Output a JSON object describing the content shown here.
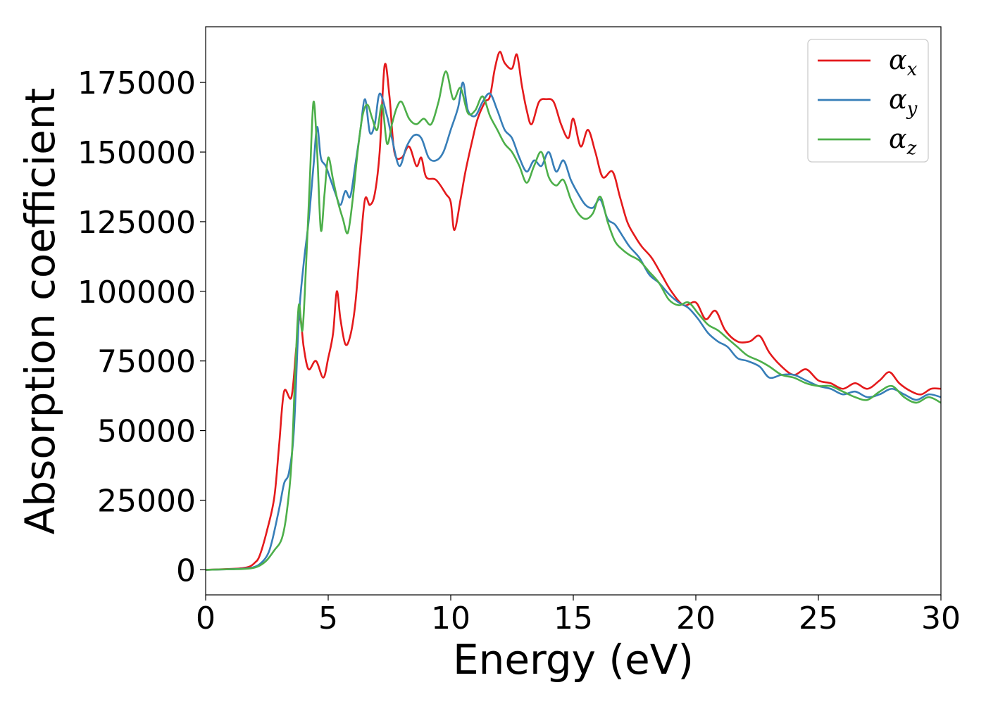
{
  "chart_data": {
    "type": "line",
    "title": "",
    "xlabel": "Energy (eV)",
    "ylabel": "Absorption coefficient",
    "xlim": [
      0,
      30
    ],
    "ylim": [
      -9000,
      195000
    ],
    "xticks": [
      0,
      5,
      10,
      15,
      20,
      25,
      30
    ],
    "xtick_labels": [
      "0",
      "5",
      "10",
      "15",
      "20",
      "25",
      "30"
    ],
    "yticks": [
      0,
      25000,
      50000,
      75000,
      100000,
      125000,
      150000,
      175000
    ],
    "ytick_labels": [
      "0",
      "25000",
      "50000",
      "75000",
      "100000",
      "125000",
      "150000",
      "175000"
    ],
    "grid": false,
    "legend_position": "top-right",
    "series": [
      {
        "name": "α",
        "sub": "x",
        "color": "#e41a1c",
        "points": [
          [
            0,
            0
          ],
          [
            1.0,
            300
          ],
          [
            1.5,
            600
          ],
          [
            1.8,
            1200
          ],
          [
            2.0,
            2500
          ],
          [
            2.2,
            5000
          ],
          [
            2.5,
            14000
          ],
          [
            2.8,
            26000
          ],
          [
            3.0,
            45000
          ],
          [
            3.2,
            64000
          ],
          [
            3.5,
            62000
          ],
          [
            3.7,
            80000
          ],
          [
            3.85,
            91000
          ],
          [
            4.0,
            80000
          ],
          [
            4.2,
            72000
          ],
          [
            4.5,
            75000
          ],
          [
            4.8,
            69000
          ],
          [
            5.0,
            76000
          ],
          [
            5.2,
            85000
          ],
          [
            5.35,
            100000
          ],
          [
            5.5,
            90000
          ],
          [
            5.7,
            81000
          ],
          [
            5.9,
            84000
          ],
          [
            6.1,
            95000
          ],
          [
            6.3,
            115000
          ],
          [
            6.5,
            133000
          ],
          [
            6.7,
            131000
          ],
          [
            6.9,
            135000
          ],
          [
            7.1,
            150000
          ],
          [
            7.3,
            181000
          ],
          [
            7.5,
            170000
          ],
          [
            7.7,
            150000
          ],
          [
            8.0,
            148000
          ],
          [
            8.3,
            152000
          ],
          [
            8.6,
            145000
          ],
          [
            8.8,
            148000
          ],
          [
            9.0,
            141000
          ],
          [
            9.4,
            140000
          ],
          [
            9.8,
            135000
          ],
          [
            10.0,
            132000
          ],
          [
            10.15,
            122000
          ],
          [
            10.4,
            133000
          ],
          [
            10.6,
            143000
          ],
          [
            10.9,
            155000
          ],
          [
            11.1,
            162000
          ],
          [
            11.4,
            168000
          ],
          [
            11.6,
            170000
          ],
          [
            11.8,
            180000
          ],
          [
            12.0,
            186000
          ],
          [
            12.2,
            182000
          ],
          [
            12.5,
            180000
          ],
          [
            12.7,
            185000
          ],
          [
            12.9,
            174000
          ],
          [
            13.1,
            165000
          ],
          [
            13.3,
            160000
          ],
          [
            13.6,
            168000
          ],
          [
            13.9,
            169000
          ],
          [
            14.2,
            168000
          ],
          [
            14.5,
            160000
          ],
          [
            14.8,
            155000
          ],
          [
            15.0,
            162000
          ],
          [
            15.3,
            152000
          ],
          [
            15.6,
            158000
          ],
          [
            15.9,
            150000
          ],
          [
            16.2,
            141000
          ],
          [
            16.6,
            143000
          ],
          [
            16.9,
            134000
          ],
          [
            17.2,
            125000
          ],
          [
            17.5,
            120000
          ],
          [
            17.8,
            116000
          ],
          [
            18.2,
            112000
          ],
          [
            18.6,
            106000
          ],
          [
            19.0,
            100000
          ],
          [
            19.5,
            95000
          ],
          [
            20.0,
            96000
          ],
          [
            20.4,
            90000
          ],
          [
            20.8,
            93000
          ],
          [
            21.2,
            86000
          ],
          [
            21.7,
            82000
          ],
          [
            22.2,
            82000
          ],
          [
            22.6,
            84000
          ],
          [
            23.0,
            78000
          ],
          [
            23.5,
            73000
          ],
          [
            24.0,
            70000
          ],
          [
            24.5,
            72000
          ],
          [
            25.0,
            68000
          ],
          [
            25.5,
            67000
          ],
          [
            26.0,
            65000
          ],
          [
            26.5,
            67000
          ],
          [
            27.0,
            65000
          ],
          [
            27.5,
            68000
          ],
          [
            27.9,
            71000
          ],
          [
            28.3,
            67000
          ],
          [
            28.8,
            64000
          ],
          [
            29.2,
            63000
          ],
          [
            29.6,
            65000
          ],
          [
            30.0,
            65000
          ]
        ]
      },
      {
        "name": "α",
        "sub": "y",
        "color": "#377eb8",
        "points": [
          [
            0,
            0
          ],
          [
            1.0,
            200
          ],
          [
            1.5,
            400
          ],
          [
            1.9,
            800
          ],
          [
            2.2,
            2000
          ],
          [
            2.5,
            5000
          ],
          [
            2.7,
            10000
          ],
          [
            3.0,
            22000
          ],
          [
            3.2,
            31000
          ],
          [
            3.4,
            35000
          ],
          [
            3.6,
            50000
          ],
          [
            3.8,
            90000
          ],
          [
            4.0,
            110000
          ],
          [
            4.2,
            125000
          ],
          [
            4.4,
            145000
          ],
          [
            4.55,
            159000
          ],
          [
            4.7,
            148000
          ],
          [
            4.9,
            145000
          ],
          [
            5.1,
            140000
          ],
          [
            5.3,
            135000
          ],
          [
            5.5,
            131000
          ],
          [
            5.7,
            136000
          ],
          [
            5.9,
            134000
          ],
          [
            6.1,
            145000
          ],
          [
            6.3,
            157000
          ],
          [
            6.5,
            169000
          ],
          [
            6.7,
            157000
          ],
          [
            6.9,
            160000
          ],
          [
            7.1,
            171000
          ],
          [
            7.4,
            163000
          ],
          [
            7.6,
            155000
          ],
          [
            7.9,
            145000
          ],
          [
            8.2,
            152000
          ],
          [
            8.5,
            156000
          ],
          [
            8.8,
            155000
          ],
          [
            9.1,
            148000
          ],
          [
            9.4,
            147000
          ],
          [
            9.7,
            150000
          ],
          [
            10.0,
            158000
          ],
          [
            10.3,
            166000
          ],
          [
            10.5,
            175000
          ],
          [
            10.7,
            165000
          ],
          [
            11.0,
            163000
          ],
          [
            11.3,
            168000
          ],
          [
            11.6,
            171000
          ],
          [
            11.9,
            165000
          ],
          [
            12.2,
            158000
          ],
          [
            12.5,
            155000
          ],
          [
            12.8,
            148000
          ],
          [
            13.1,
            143000
          ],
          [
            13.4,
            147000
          ],
          [
            13.7,
            145000
          ],
          [
            14.0,
            150000
          ],
          [
            14.3,
            143000
          ],
          [
            14.6,
            147000
          ],
          [
            14.9,
            140000
          ],
          [
            15.2,
            135000
          ],
          [
            15.5,
            131000
          ],
          [
            15.8,
            130000
          ],
          [
            16.1,
            133000
          ],
          [
            16.4,
            126000
          ],
          [
            16.7,
            124000
          ],
          [
            17.0,
            120000
          ],
          [
            17.3,
            116000
          ],
          [
            17.7,
            112000
          ],
          [
            18.1,
            106000
          ],
          [
            18.5,
            103000
          ],
          [
            18.9,
            99000
          ],
          [
            19.3,
            96000
          ],
          [
            19.7,
            94000
          ],
          [
            20.1,
            90000
          ],
          [
            20.5,
            85000
          ],
          [
            20.9,
            82000
          ],
          [
            21.3,
            80000
          ],
          [
            21.7,
            76000
          ],
          [
            22.1,
            75000
          ],
          [
            22.6,
            73000
          ],
          [
            23.0,
            69000
          ],
          [
            23.5,
            70000
          ],
          [
            24.0,
            70000
          ],
          [
            24.5,
            68000
          ],
          [
            25.0,
            66000
          ],
          [
            25.5,
            65000
          ],
          [
            26.0,
            63000
          ],
          [
            26.5,
            64000
          ],
          [
            27.0,
            62000
          ],
          [
            27.5,
            63000
          ],
          [
            28.0,
            65000
          ],
          [
            28.5,
            63000
          ],
          [
            29.0,
            61000
          ],
          [
            29.5,
            63000
          ],
          [
            30.0,
            62000
          ]
        ]
      },
      {
        "name": "α",
        "sub": "z",
        "color": "#4daf4a",
        "points": [
          [
            0,
            0
          ],
          [
            1.0,
            200
          ],
          [
            1.5,
            300
          ],
          [
            1.9,
            600
          ],
          [
            2.2,
            1500
          ],
          [
            2.5,
            3500
          ],
          [
            2.8,
            7000
          ],
          [
            3.1,
            11000
          ],
          [
            3.3,
            20000
          ],
          [
            3.5,
            38000
          ],
          [
            3.65,
            70000
          ],
          [
            3.8,
            95000
          ],
          [
            3.95,
            86000
          ],
          [
            4.1,
            110000
          ],
          [
            4.25,
            140000
          ],
          [
            4.4,
            168000
          ],
          [
            4.55,
            150000
          ],
          [
            4.7,
            122000
          ],
          [
            4.85,
            135000
          ],
          [
            5.0,
            148000
          ],
          [
            5.2,
            140000
          ],
          [
            5.4,
            132000
          ],
          [
            5.6,
            126000
          ],
          [
            5.8,
            121000
          ],
          [
            6.0,
            133000
          ],
          [
            6.2,
            150000
          ],
          [
            6.4,
            163000
          ],
          [
            6.6,
            167000
          ],
          [
            6.8,
            162000
          ],
          [
            7.0,
            158000
          ],
          [
            7.2,
            167000
          ],
          [
            7.4,
            153000
          ],
          [
            7.6,
            160000
          ],
          [
            7.8,
            166000
          ],
          [
            8.0,
            168000
          ],
          [
            8.3,
            162000
          ],
          [
            8.6,
            160000
          ],
          [
            8.9,
            162000
          ],
          [
            9.2,
            160000
          ],
          [
            9.5,
            168000
          ],
          [
            9.8,
            179000
          ],
          [
            10.1,
            169000
          ],
          [
            10.4,
            173000
          ],
          [
            10.7,
            164000
          ],
          [
            11.0,
            165000
          ],
          [
            11.3,
            170000
          ],
          [
            11.6,
            163000
          ],
          [
            11.9,
            158000
          ],
          [
            12.2,
            153000
          ],
          [
            12.5,
            150000
          ],
          [
            12.8,
            145000
          ],
          [
            13.1,
            139000
          ],
          [
            13.4,
            145000
          ],
          [
            13.7,
            150000
          ],
          [
            14.0,
            141000
          ],
          [
            14.3,
            138000
          ],
          [
            14.6,
            140000
          ],
          [
            14.9,
            133000
          ],
          [
            15.2,
            128000
          ],
          [
            15.5,
            126000
          ],
          [
            15.8,
            128000
          ],
          [
            16.1,
            134000
          ],
          [
            16.4,
            125000
          ],
          [
            16.7,
            118000
          ],
          [
            17.0,
            115000
          ],
          [
            17.3,
            113000
          ],
          [
            17.7,
            111000
          ],
          [
            18.1,
            107000
          ],
          [
            18.5,
            103000
          ],
          [
            18.9,
            97000
          ],
          [
            19.3,
            95000
          ],
          [
            19.7,
            96000
          ],
          [
            20.1,
            92000
          ],
          [
            20.5,
            88000
          ],
          [
            20.9,
            86000
          ],
          [
            21.3,
            83000
          ],
          [
            21.7,
            80000
          ],
          [
            22.1,
            77000
          ],
          [
            22.6,
            75000
          ],
          [
            23.0,
            73000
          ],
          [
            23.5,
            70000
          ],
          [
            24.0,
            69000
          ],
          [
            24.5,
            67000
          ],
          [
            25.0,
            66000
          ],
          [
            25.5,
            66000
          ],
          [
            26.0,
            64000
          ],
          [
            26.5,
            62000
          ],
          [
            27.0,
            61000
          ],
          [
            27.5,
            64000
          ],
          [
            28.0,
            66000
          ],
          [
            28.5,
            62000
          ],
          [
            29.0,
            60000
          ],
          [
            29.5,
            62000
          ],
          [
            30.0,
            60000
          ]
        ]
      }
    ]
  }
}
